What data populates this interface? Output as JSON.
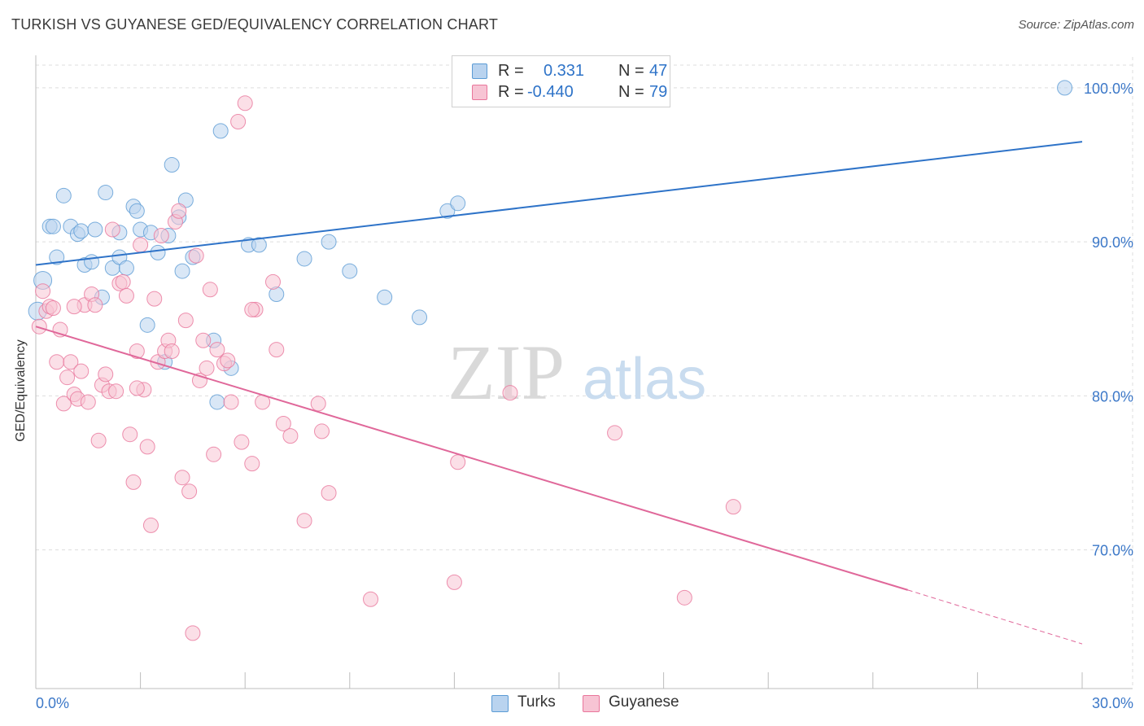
{
  "title": "TURKISH VS GUYANESE GED/EQUIVALENCY CORRELATION CHART",
  "source": "Source: ZipAtlas.com",
  "watermark": {
    "zip": "ZIP",
    "atlas": "atlas"
  },
  "colors": {
    "blue": "#5b9bd5",
    "blue_fill": "#b9d3ef",
    "blue_line": "#2e73c8",
    "pink": "#e9769b",
    "pink_fill": "#f7c4d4",
    "pink_line": "#e0689a",
    "tick_label": "#3c78c8",
    "grid": "#dddddd"
  },
  "legend": {
    "rows": [
      {
        "series": "Turks",
        "r_label": "R =",
        "r_value": "0.331",
        "n_label": "N =",
        "n_value": "47"
      },
      {
        "series": "Guyanese",
        "r_label": "R =",
        "r_value": "-0.440",
        "n_label": "N =",
        "n_value": "79"
      }
    ]
  },
  "bottom_legend": {
    "turks": "Turks",
    "guyanese": "Guyanese"
  },
  "chart_data": {
    "type": "scatter",
    "title": "TURKISH VS GUYANESE GED/EQUIVALENCY CORRELATION CHART",
    "xlabel": "",
    "ylabel": "GED/Equivalency",
    "xlim": [
      0,
      30
    ],
    "ylim": [
      61,
      102
    ],
    "x_tick_labels": [
      "0.0%",
      "30.0%"
    ],
    "y_ticks": [
      70,
      80,
      90,
      100
    ],
    "y_tick_labels": [
      "70.0%",
      "80.0%",
      "90.0%",
      "100.0%"
    ],
    "grid": true,
    "legend_position": "top-center",
    "series": [
      {
        "name": "Turks",
        "color": "#5b9bd5",
        "trend": {
          "x": [
            0,
            30
          ],
          "y": [
            88.5,
            96.5
          ]
        },
        "points": [
          [
            0.05,
            85.5
          ],
          [
            0.2,
            87.5
          ],
          [
            0.4,
            91.0
          ],
          [
            0.5,
            91.0
          ],
          [
            0.6,
            89.0
          ],
          [
            0.8,
            93.0
          ],
          [
            1.0,
            91.0
          ],
          [
            1.2,
            90.5
          ],
          [
            1.3,
            90.7
          ],
          [
            1.4,
            88.5
          ],
          [
            1.6,
            88.7
          ],
          [
            1.7,
            90.8
          ],
          [
            1.9,
            86.4
          ],
          [
            2.0,
            93.2
          ],
          [
            2.2,
            88.3
          ],
          [
            2.4,
            89.0
          ],
          [
            2.4,
            90.6
          ],
          [
            2.6,
            88.3
          ],
          [
            2.8,
            92.3
          ],
          [
            2.9,
            92.0
          ],
          [
            3.0,
            90.8
          ],
          [
            3.2,
            84.6
          ],
          [
            3.3,
            90.6
          ],
          [
            3.5,
            89.3
          ],
          [
            3.7,
            82.2
          ],
          [
            3.8,
            90.4
          ],
          [
            3.9,
            95.0
          ],
          [
            4.1,
            91.6
          ],
          [
            4.2,
            88.1
          ],
          [
            4.3,
            92.7
          ],
          [
            4.5,
            89.0
          ],
          [
            5.1,
            83.6
          ],
          [
            5.2,
            79.6
          ],
          [
            5.3,
            97.2
          ],
          [
            5.6,
            81.8
          ],
          [
            6.1,
            89.8
          ],
          [
            6.4,
            89.8
          ],
          [
            6.9,
            86.6
          ],
          [
            7.7,
            88.9
          ],
          [
            8.4,
            90.0
          ],
          [
            9.0,
            88.1
          ],
          [
            10.0,
            86.4
          ],
          [
            11.0,
            85.1
          ],
          [
            11.8,
            92.0
          ],
          [
            12.1,
            92.5
          ],
          [
            12.3,
            100.0
          ],
          [
            29.5,
            100.0
          ]
        ]
      },
      {
        "name": "Guyanese",
        "color": "#e9769b",
        "trend": {
          "x": [
            0,
            25.0
          ],
          "y": [
            84.5,
            67.4
          ]
        },
        "trend_dashed": {
          "x": [
            25.0,
            30
          ],
          "y": [
            67.4,
            63.9
          ]
        },
        "points": [
          [
            0.1,
            84.5
          ],
          [
            0.2,
            86.8
          ],
          [
            0.3,
            85.5
          ],
          [
            0.4,
            85.8
          ],
          [
            0.5,
            85.7
          ],
          [
            0.6,
            82.2
          ],
          [
            0.7,
            84.3
          ],
          [
            0.8,
            79.5
          ],
          [
            0.9,
            81.2
          ],
          [
            1.0,
            82.2
          ],
          [
            1.1,
            80.1
          ],
          [
            1.2,
            79.8
          ],
          [
            1.3,
            81.6
          ],
          [
            1.4,
            85.9
          ],
          [
            1.5,
            79.6
          ],
          [
            1.6,
            86.6
          ],
          [
            1.7,
            85.9
          ],
          [
            1.8,
            77.1
          ],
          [
            1.9,
            80.7
          ],
          [
            2.0,
            81.4
          ],
          [
            2.1,
            80.3
          ],
          [
            2.2,
            90.8
          ],
          [
            2.3,
            80.3
          ],
          [
            2.4,
            87.3
          ],
          [
            2.5,
            87.4
          ],
          [
            2.6,
            86.5
          ],
          [
            2.7,
            77.5
          ],
          [
            2.8,
            74.4
          ],
          [
            2.9,
            82.9
          ],
          [
            3.0,
            89.8
          ],
          [
            3.1,
            80.4
          ],
          [
            3.2,
            76.7
          ],
          [
            3.3,
            71.6
          ],
          [
            3.4,
            86.3
          ],
          [
            3.5,
            82.2
          ],
          [
            3.6,
            90.4
          ],
          [
            3.7,
            82.9
          ],
          [
            3.8,
            83.6
          ],
          [
            3.9,
            82.9
          ],
          [
            4.0,
            91.3
          ],
          [
            4.1,
            92.0
          ],
          [
            4.2,
            74.7
          ],
          [
            4.3,
            84.9
          ],
          [
            4.4,
            73.8
          ],
          [
            4.5,
            64.6
          ],
          [
            4.6,
            89.1
          ],
          [
            4.7,
            81.0
          ],
          [
            4.8,
            83.6
          ],
          [
            4.9,
            81.8
          ],
          [
            5.0,
            86.9
          ],
          [
            5.1,
            76.2
          ],
          [
            5.2,
            83.0
          ],
          [
            5.4,
            82.1
          ],
          [
            5.5,
            82.3
          ],
          [
            5.6,
            79.6
          ],
          [
            5.8,
            97.8
          ],
          [
            5.9,
            77.0
          ],
          [
            6.0,
            99.0
          ],
          [
            6.2,
            75.6
          ],
          [
            6.3,
            85.6
          ],
          [
            6.5,
            79.6
          ],
          [
            6.8,
            87.4
          ],
          [
            6.9,
            83.0
          ],
          [
            7.1,
            78.2
          ],
          [
            7.3,
            77.4
          ],
          [
            7.7,
            71.9
          ],
          [
            8.1,
            79.5
          ],
          [
            8.2,
            77.7
          ],
          [
            8.4,
            73.7
          ],
          [
            9.6,
            66.8
          ],
          [
            12.0,
            67.9
          ],
          [
            12.1,
            75.7
          ],
          [
            13.6,
            80.2
          ],
          [
            16.6,
            77.6
          ],
          [
            18.6,
            66.9
          ],
          [
            20.0,
            72.8
          ],
          [
            1.1,
            85.8
          ],
          [
            2.9,
            80.5
          ],
          [
            6.2,
            85.6
          ]
        ]
      }
    ]
  }
}
